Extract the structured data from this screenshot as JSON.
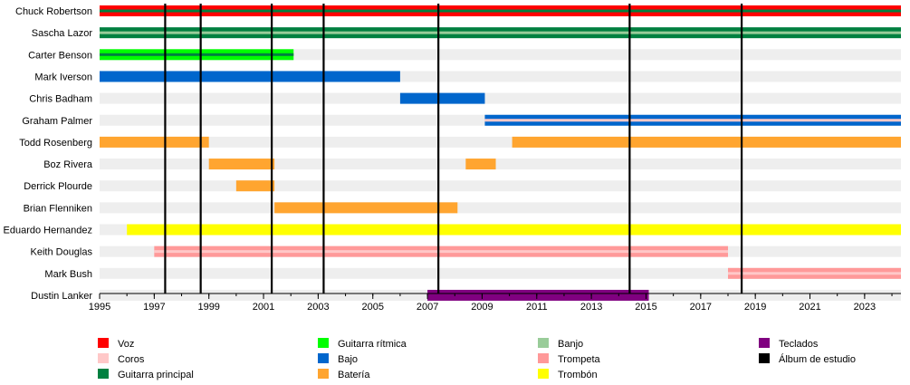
{
  "chart_data": {
    "type": "timeline",
    "title": "",
    "x_range": [
      1995,
      2024.33
    ],
    "x_ticks": [
      "1995",
      "1997",
      "1999",
      "2001",
      "2003",
      "2005",
      "2007",
      "2009",
      "2011",
      "2013",
      "2015",
      "2017",
      "2019",
      "2021",
      "2023"
    ],
    "members": [
      "Chuck Robertson",
      "Sascha Lazor",
      "Carter Benson",
      "Mark Iverson",
      "Chris Badham",
      "Graham Palmer",
      "Todd Rosenberg",
      "Boz Rivera",
      "Derrick Plourde",
      "Brian Flenniken",
      "Eduardo Hernandez",
      "Keith Douglas",
      "Mark Bush",
      "Dustin Lanker"
    ],
    "bars": [
      {
        "member": "Chuck Robertson",
        "start": 1995,
        "end": 2024.33,
        "role": "Voz",
        "secondary": "Guitarra principal"
      },
      {
        "member": "Sascha Lazor",
        "start": 1995,
        "end": 2024.33,
        "role": "Guitarra principal",
        "secondary": "Banjo"
      },
      {
        "member": "Carter Benson",
        "start": 1995,
        "end": 2002.1,
        "role": "Guitarra rítmica",
        "secondary": "Guitarra principal"
      },
      {
        "member": "Mark Iverson",
        "start": 1995,
        "end": 2006.0,
        "role": "Bajo"
      },
      {
        "member": "Chris Badham",
        "start": 2006.0,
        "end": 2009.1,
        "role": "Bajo"
      },
      {
        "member": "Graham Palmer",
        "start": 2009.1,
        "end": 2024.33,
        "role": "Bajo",
        "secondary": "Coros"
      },
      {
        "member": "Todd Rosenberg",
        "start": 1995,
        "end": 1999.0,
        "role": "Batería"
      },
      {
        "member": "Todd Rosenberg",
        "start": 2010.1,
        "end": 2024.33,
        "role": "Batería"
      },
      {
        "member": "Boz Rivera",
        "start": 1999.0,
        "end": 2001.4,
        "role": "Batería"
      },
      {
        "member": "Boz Rivera",
        "start": 2008.4,
        "end": 2009.5,
        "role": "Batería"
      },
      {
        "member": "Derrick Plourde",
        "start": 2000.0,
        "end": 2001.4,
        "role": "Batería"
      },
      {
        "member": "Brian Flenniken",
        "start": 2001.4,
        "end": 2008.1,
        "role": "Batería"
      },
      {
        "member": "Eduardo Hernandez",
        "start": 1996.0,
        "end": 2024.33,
        "role": "Trombón"
      },
      {
        "member": "Keith Douglas",
        "start": 1997.0,
        "end": 2018.0,
        "role": "Trompeta",
        "secondary": "Coros"
      },
      {
        "member": "Mark Bush",
        "start": 2018.0,
        "end": 2024.33,
        "role": "Trompeta",
        "secondary": "Coros"
      },
      {
        "member": "Dustin Lanker",
        "start": 2007.0,
        "end": 2015.1,
        "role": "Teclados"
      }
    ],
    "album_lines": [
      1997.4,
      1998.7,
      2001.3,
      2003.2,
      2007.4,
      2014.4,
      2018.5
    ],
    "legend": [
      {
        "label": "Voz",
        "color": "#ff0000"
      },
      {
        "label": "Coros",
        "color": "#ffc8c8"
      },
      {
        "label": "Guitarra principal",
        "color": "#008040"
      },
      {
        "label": "Guitarra rítmica",
        "color": "#00ff00"
      },
      {
        "label": "Bajo",
        "color": "#0066cc"
      },
      {
        "label": "Batería",
        "color": "#ffa530"
      },
      {
        "label": "Banjo",
        "color": "#99cc99"
      },
      {
        "label": "Trompeta",
        "color": "#ff9999"
      },
      {
        "label": "Trombón",
        "color": "#ffff00"
      },
      {
        "label": "Teclados",
        "color": "#800080"
      },
      {
        "label": "Álbum de estudio",
        "color": "#000000"
      }
    ],
    "grid": true,
    "legend_position": "bottom"
  }
}
